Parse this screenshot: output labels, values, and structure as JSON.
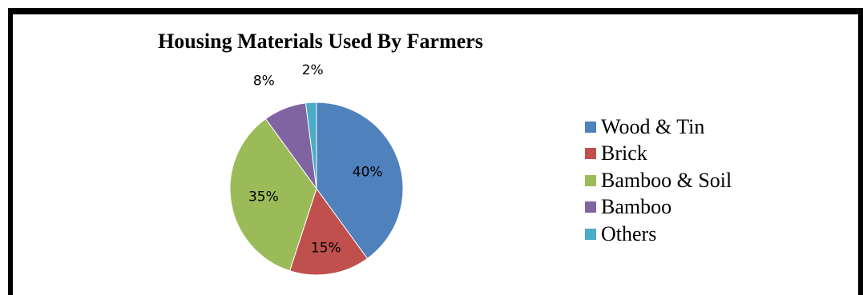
{
  "chart_data": {
    "type": "pie",
    "title": "Housing Materials Used By Farmers",
    "categories": [
      "Wood & Tin",
      "Brick",
      "Bamboo & Soil",
      "Bamboo",
      "Others"
    ],
    "values": [
      40,
      15,
      35,
      8,
      2
    ],
    "labels": [
      "40%",
      "15%",
      "35%",
      "8%",
      "2%"
    ],
    "colors": [
      "#4F81BD",
      "#C0504D",
      "#9BBB59",
      "#8064A2",
      "#4BACC6"
    ],
    "legend_position": "right"
  }
}
